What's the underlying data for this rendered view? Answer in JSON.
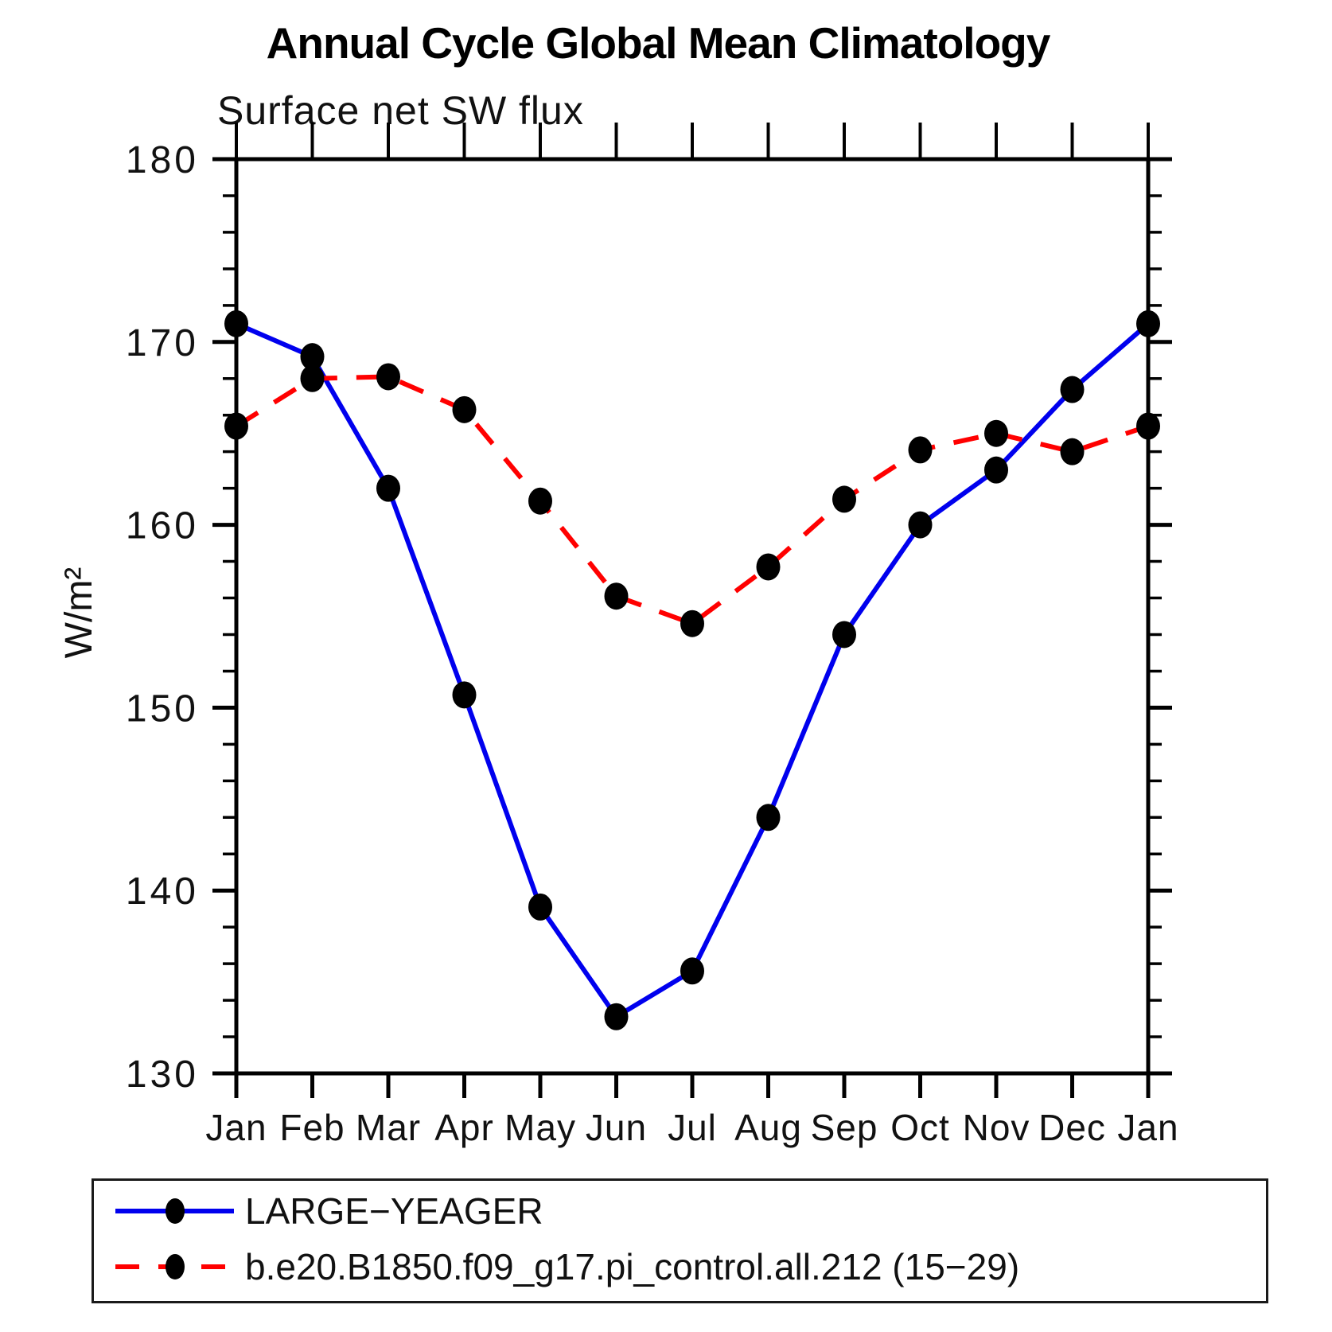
{
  "title": "Annual Cycle Global Mean Climatology",
  "chart_data": {
    "type": "line",
    "title": "Annual Cycle Global Mean Climatology",
    "subtitle": "Surface net SW flux",
    "ylabel": "W/m²",
    "xlabel": "",
    "ylim": [
      130,
      180
    ],
    "y_minor_step": 2,
    "y_tick_labels": [
      "180",
      "170",
      "160",
      "150",
      "140",
      "130"
    ],
    "x_tick_labels": [
      "Jan",
      "Feb",
      "Mar",
      "Apr",
      "May",
      "Jun",
      "Jul",
      "Aug",
      "Sep",
      "Oct",
      "Nov",
      "Dec",
      "Jan"
    ],
    "grid": "off",
    "legend_position": "bottom",
    "marker_color": "#000000",
    "axis_color": "#000000",
    "series": [
      {
        "name": "LARGE−YEAGER",
        "color": "#0000ee",
        "style": "solid",
        "marker": "filled-circle",
        "values": [
          171.0,
          169.2,
          162.0,
          150.7,
          139.1,
          133.1,
          135.6,
          144.0,
          154.0,
          160.0,
          163.0,
          167.4,
          171.0
        ]
      },
      {
        "name": "b.e20.B1850.f09_g17.pi_control.all.212 (15−29)",
        "color": "#ff0000",
        "style": "dashed",
        "marker": "filled-circle",
        "values": [
          165.4,
          168.0,
          168.1,
          166.3,
          161.3,
          156.1,
          154.6,
          157.7,
          161.4,
          164.1,
          165.0,
          164.0,
          165.4
        ]
      }
    ]
  }
}
